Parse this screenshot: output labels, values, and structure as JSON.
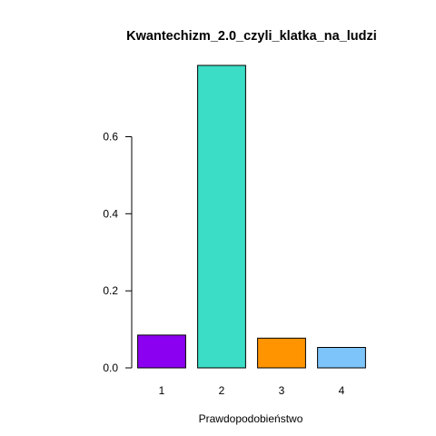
{
  "chart_data": {
    "type": "bar",
    "title": "Kwantechizm_2.0_czyli_klatka_na_ludzi",
    "xlabel": "Prawdopodobieństwo",
    "ylabel": "",
    "categories": [
      "1",
      "2",
      "3",
      "4"
    ],
    "values": [
      0.085,
      0.785,
      0.077,
      0.053
    ],
    "colors": [
      "#8B00F0",
      "#3BDDC6",
      "#FF9400",
      "#7CC4FA"
    ],
    "ylim": [
      0,
      0.785
    ],
    "yticks": [
      0.0,
      0.2,
      0.4,
      0.6
    ],
    "ytick_labels": [
      "0.0",
      "0.2",
      "0.4",
      "0.6"
    ],
    "grid": false,
    "legend": "none"
  }
}
